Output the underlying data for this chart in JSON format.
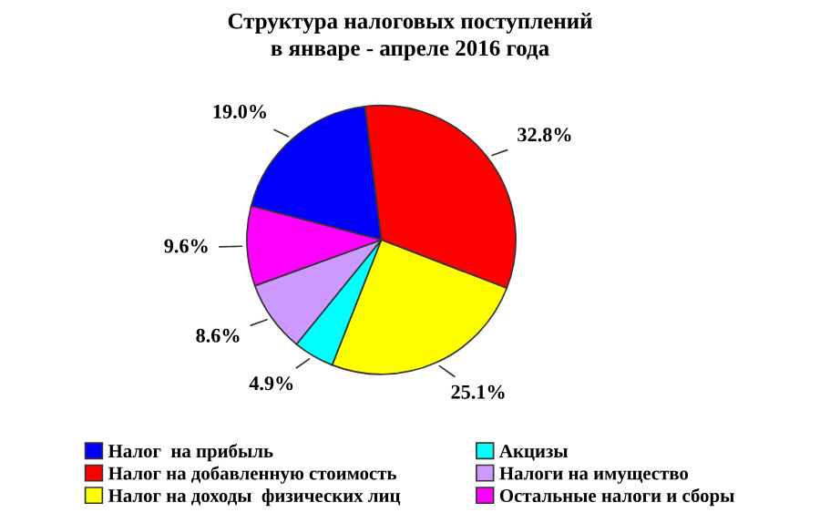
{
  "chart_data": {
    "type": "pie",
    "title": "Структура налоговых поступлений\nв январе - апреле 2016 года",
    "categories": [
      "Налог  на прибыль",
      "Налог на добавленную стоимость",
      "Налог на доходы  физических лиц",
      "Акцизы",
      "Налоги на имущество",
      "Остальные налоги и сборы"
    ],
    "values": [
      19.0,
      32.8,
      25.1,
      4.9,
      8.6,
      9.6
    ],
    "colors": [
      "#0000ff",
      "#ff0000",
      "#ffff00",
      "#00ffff",
      "#cc99ff",
      "#ff00ff"
    ],
    "value_labels": [
      "19.0%",
      "32.8%",
      "25.1%",
      "4.9%",
      "8.6%",
      "9.6%"
    ],
    "legend": "bottom"
  }
}
